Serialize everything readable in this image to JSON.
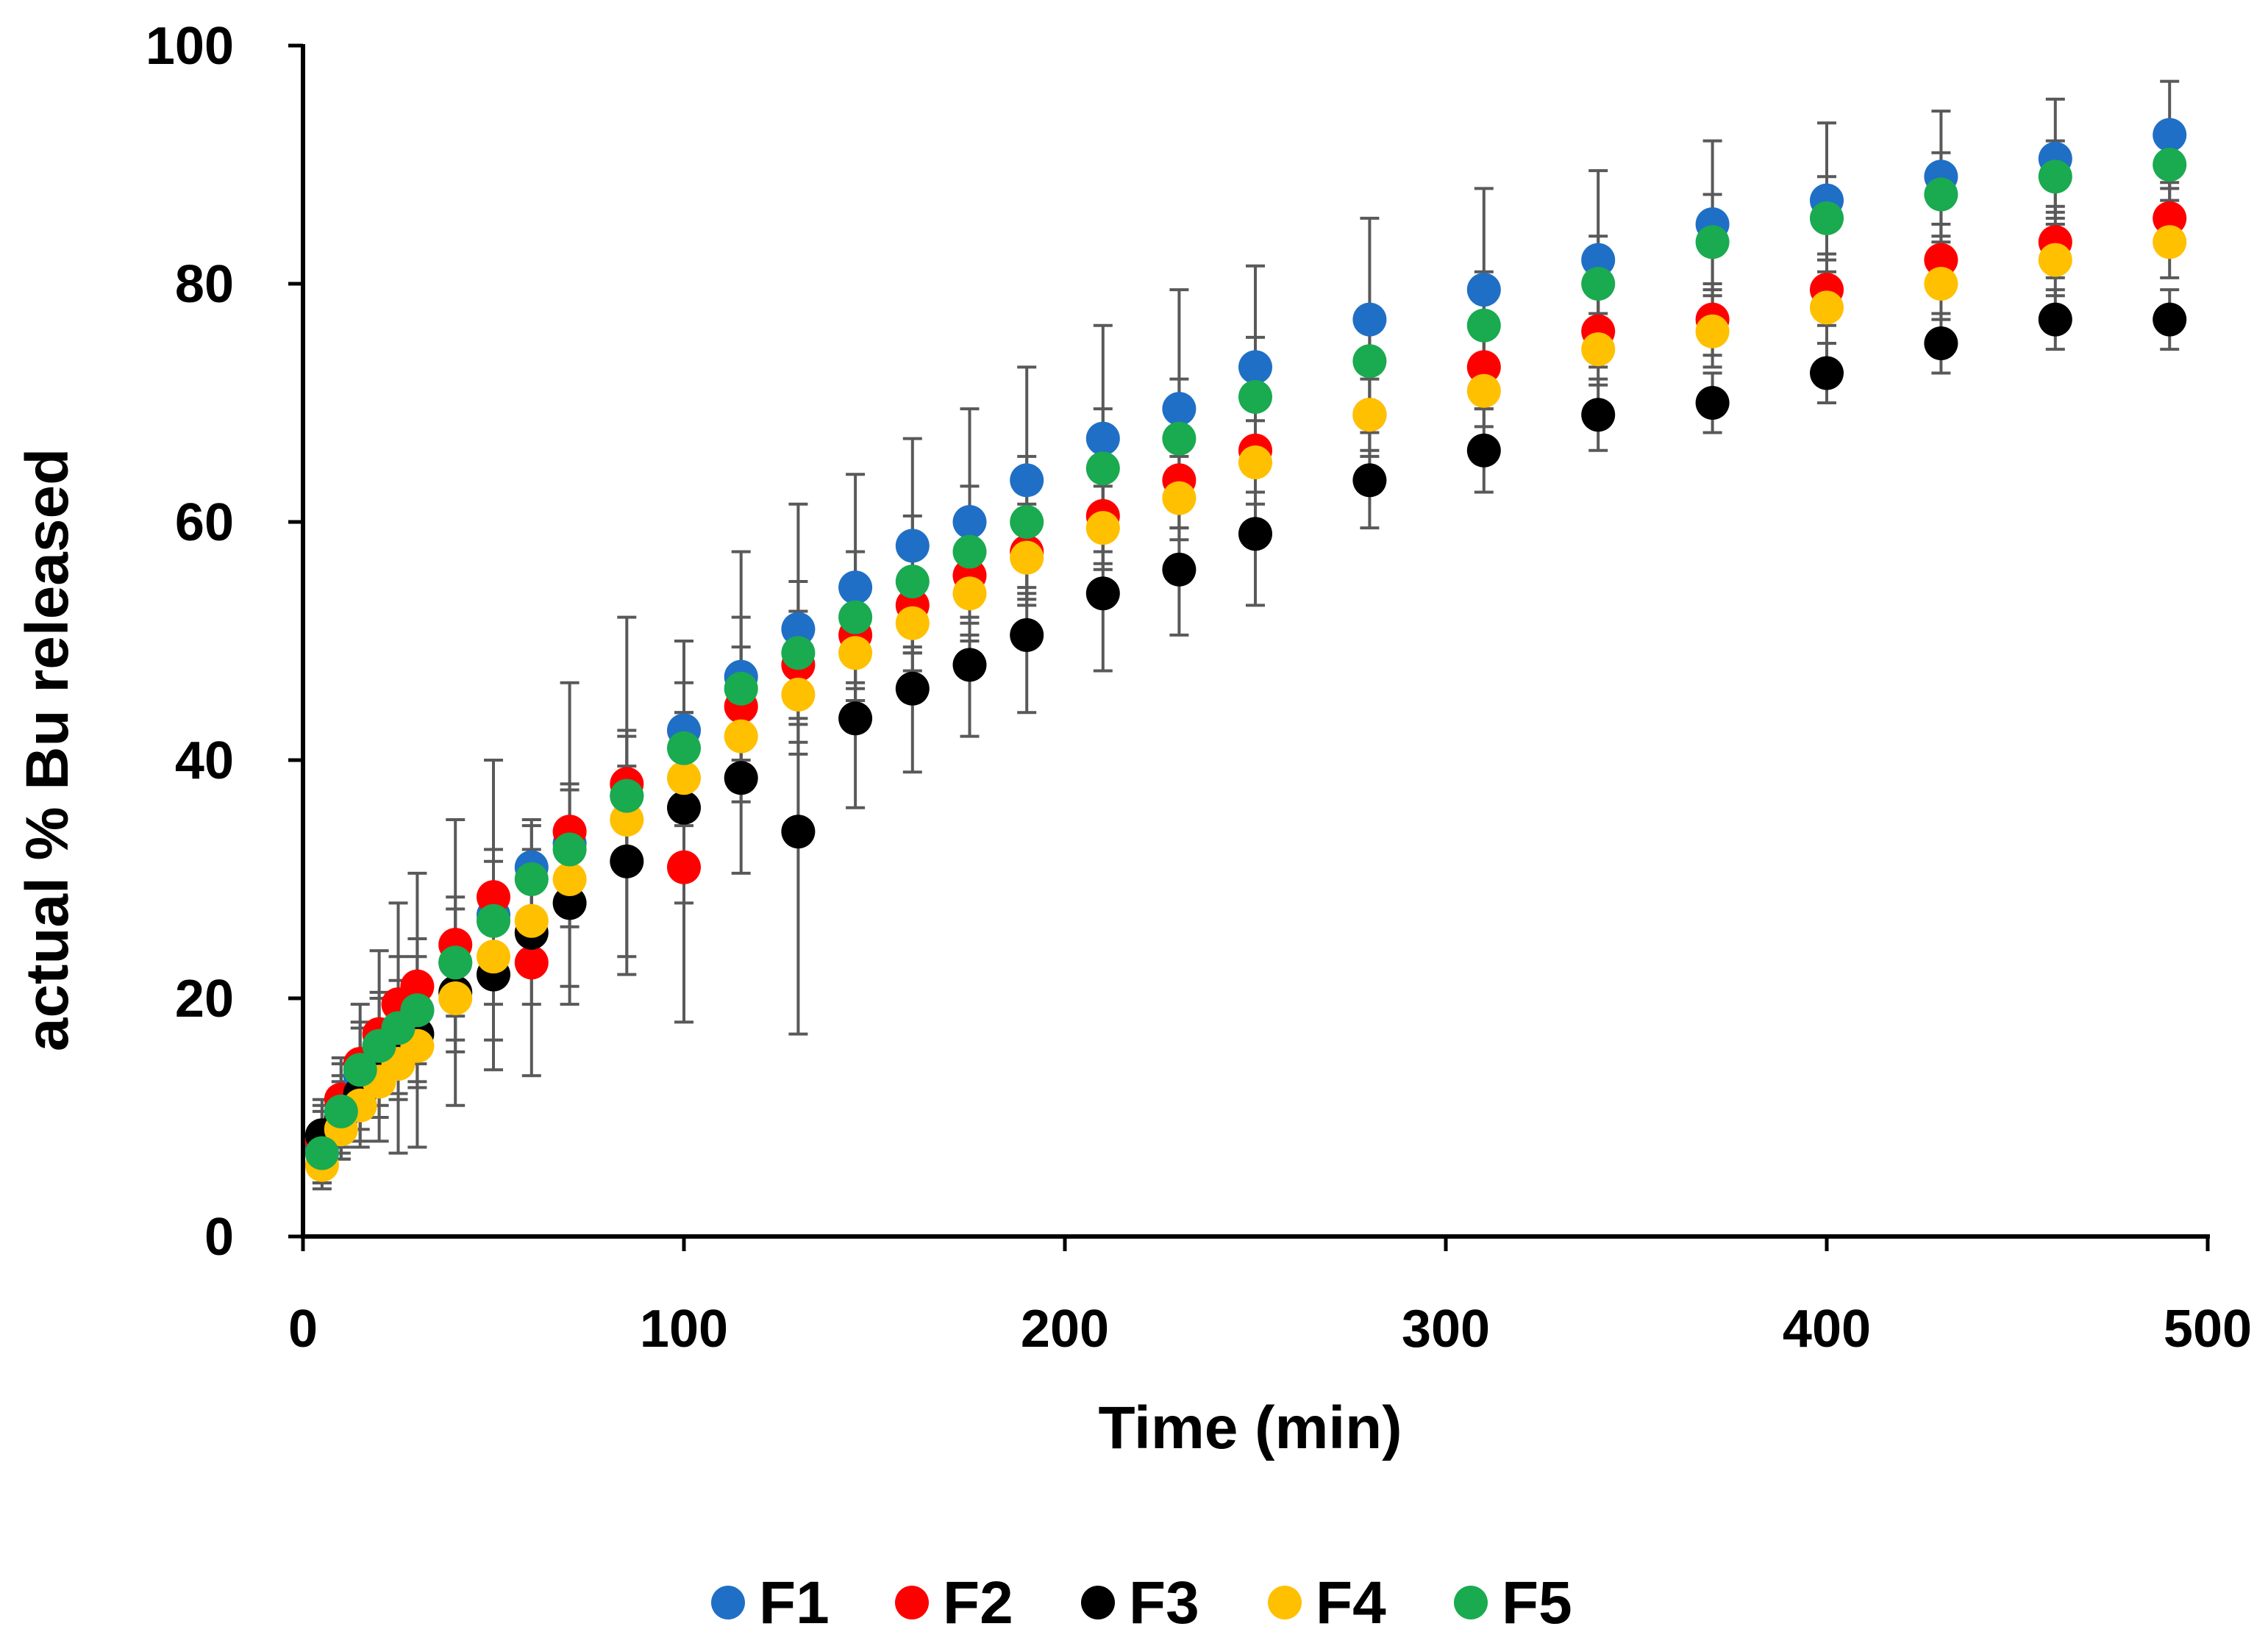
{
  "chart_data": {
    "type": "scatter",
    "title": "",
    "xlabel": "Time (min)",
    "ylabel": "actual % Bu released",
    "xlim": [
      0,
      500
    ],
    "ylim": [
      0,
      100
    ],
    "xticks": [
      0,
      100,
      200,
      300,
      400,
      500
    ],
    "yticks": [
      0,
      20,
      40,
      60,
      80,
      100
    ],
    "grid": false,
    "legend_position": "bottom",
    "x": [
      5,
      10,
      15,
      20,
      25,
      30,
      40,
      50,
      60,
      70,
      85,
      100,
      115,
      130,
      145,
      160,
      175,
      190,
      210,
      230,
      250,
      280,
      310,
      340,
      370,
      400,
      430,
      460,
      490
    ],
    "series": [
      {
        "name": "F1",
        "color": "#1f6fc6",
        "values": [
          7.5,
          10.5,
          13.5,
          16,
          17.5,
          19,
          23,
          27,
          31,
          33,
          37,
          42.5,
          47,
          51,
          54.5,
          58,
          60,
          63.5,
          67,
          69.5,
          73,
          77,
          79.5,
          82,
          85,
          87,
          89,
          90.5,
          92.5
        ],
        "errors": [
          3,
          4,
          6,
          8,
          10.5,
          11.5,
          12,
          13,
          3.5,
          13.5,
          15,
          7.5,
          10.5,
          10.5,
          9.5,
          9,
          9.5,
          9.5,
          9.5,
          10,
          8.5,
          8.5,
          8.5,
          7.5,
          7,
          6.5,
          5.5,
          5,
          4.5
        ]
      },
      {
        "name": "F2",
        "color": "#ff0000",
        "values": [
          8,
          11.5,
          14.5,
          17,
          19.5,
          21,
          24.5,
          28.5,
          23,
          34,
          38,
          31,
          44.5,
          48,
          50.5,
          53,
          55.5,
          57.5,
          60.5,
          63.5,
          66,
          69,
          73,
          76,
          77,
          79.5,
          82,
          83.5,
          85.5
        ],
        "errors": [
          3,
          3.5,
          3.5,
          3.5,
          4,
          4,
          4,
          4,
          9.5,
          4,
          4,
          13,
          5,
          4.5,
          4.5,
          4,
          4,
          4,
          4,
          4,
          3.5,
          3.5,
          3.5,
          3,
          3,
          3,
          3,
          3,
          3
        ]
      },
      {
        "name": "F3",
        "color": "#000000",
        "values": [
          8.5,
          10,
          12,
          14,
          15.5,
          17,
          20.5,
          22,
          25.5,
          28,
          31.5,
          36,
          38.5,
          34,
          43.5,
          46,
          48,
          50.5,
          54,
          56,
          59,
          63.5,
          66,
          69,
          70,
          72.5,
          75,
          77,
          77
        ],
        "errors": [
          3,
          3,
          3,
          3,
          3.5,
          4,
          5,
          5.5,
          6,
          7,
          8,
          8,
          8,
          17,
          7.5,
          7,
          6,
          6.5,
          6.5,
          5.5,
          6,
          4,
          3.5,
          3,
          2.5,
          2.5,
          2.5,
          2.5,
          2.5
        ]
      },
      {
        "name": "F4",
        "color": "#ffc000",
        "values": [
          6,
          9,
          11,
          13,
          14.5,
          16,
          20,
          23.5,
          26.5,
          30,
          35,
          38.5,
          42,
          45.5,
          49,
          51.5,
          54,
          57,
          59.5,
          62,
          65,
          69,
          71,
          74.5,
          76,
          78,
          80,
          82,
          83.5
        ],
        "errors": [
          2,
          2.5,
          3,
          3,
          3,
          3.5,
          3.5,
          4,
          4,
          4,
          4,
          4,
          4,
          4,
          4,
          4,
          4,
          4,
          3.5,
          3.5,
          3.5,
          3,
          3,
          3,
          3,
          3,
          3,
          3,
          3
        ]
      },
      {
        "name": "F5",
        "color": "#1aaa50",
        "values": [
          7,
          10.5,
          14,
          16,
          17.5,
          19,
          23,
          26.5,
          30,
          32.5,
          37,
          41,
          46,
          49,
          52,
          55,
          57.5,
          60,
          64.5,
          67,
          70.5,
          73.5,
          76.5,
          80,
          83.5,
          85.5,
          87.5,
          89,
          90
        ],
        "errors": [
          2.5,
          3,
          3.5,
          4,
          4,
          4.5,
          4.5,
          5,
          5,
          5,
          5.5,
          5.5,
          6,
          6,
          5.5,
          5.5,
          5.5,
          5.5,
          5,
          5,
          5,
          4.5,
          4.5,
          4,
          4,
          3.5,
          3.5,
          3,
          3
        ]
      }
    ]
  }
}
